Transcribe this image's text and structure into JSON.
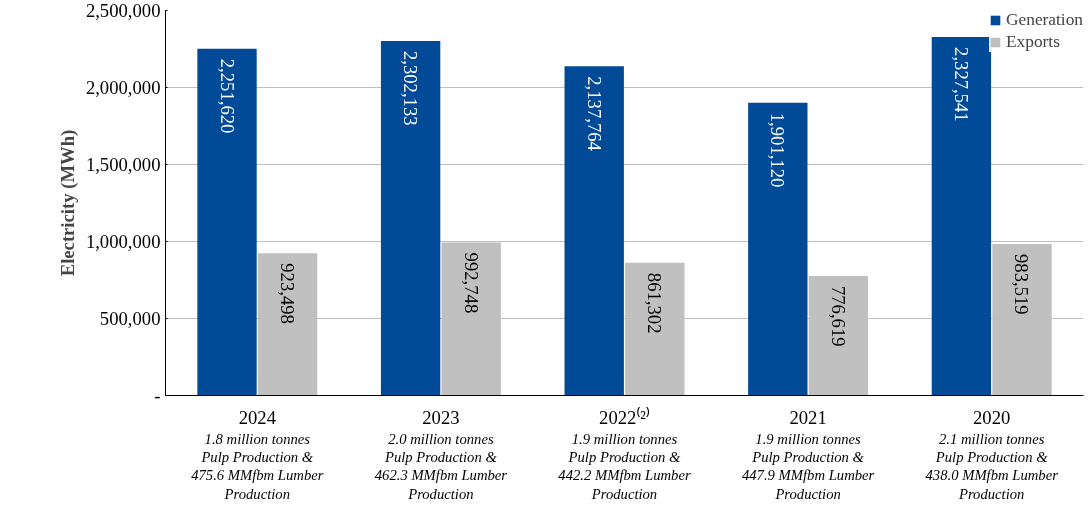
{
  "chart_data": {
    "type": "bar",
    "ylabel": "Electricity (MWh)",
    "categories": [
      "2024",
      "2023",
      "2022⁽²⁾",
      "2021",
      "2020"
    ],
    "series": [
      {
        "name": "Generation",
        "color": "#004a98",
        "values": [
          2251620,
          2302133,
          2137764,
          1901120,
          2327541
        ],
        "value_labels": [
          "2,251,620",
          "2,302,133",
          "2,137,764",
          "1,901,120",
          "2,327,541"
        ]
      },
      {
        "name": "Exports",
        "color": "#c0c0c0",
        "values": [
          923498,
          992748,
          861302,
          776619,
          983519
        ],
        "value_labels": [
          "923,498",
          "992,748",
          "861,302",
          "776,619",
          "983,519"
        ]
      }
    ],
    "ylim": [
      0,
      2500000
    ],
    "yticks": [
      {
        "value": 0,
        "label": "-"
      },
      {
        "value": 500000,
        "label": "500,000"
      },
      {
        "value": 1000000,
        "label": "1,000,000"
      },
      {
        "value": 1500000,
        "label": "1,500,000"
      },
      {
        "value": 2000000,
        "label": "2,000,000"
      },
      {
        "value": 2500000,
        "label": "2,500,000"
      }
    ],
    "grid": "y",
    "legend": "top right",
    "annotations": [
      "1.8 million tonnes\nPulp Production &\n475.6 MMfbm Lumber\nProduction",
      "2.0 million tonnes\nPulp Production &\n462.3 MMfbm Lumber\nProduction",
      "1.9 million tonnes\nPulp Production &\n442.2 MMfbm Lumber\nProduction",
      "1.9 million tonnes\nPulp Production &\n447.9 MMfbm Lumber\nProduction",
      "2.1 million tonnes\nPulp Production &\n438.0 MMfbm Lumber\nProduction"
    ]
  }
}
